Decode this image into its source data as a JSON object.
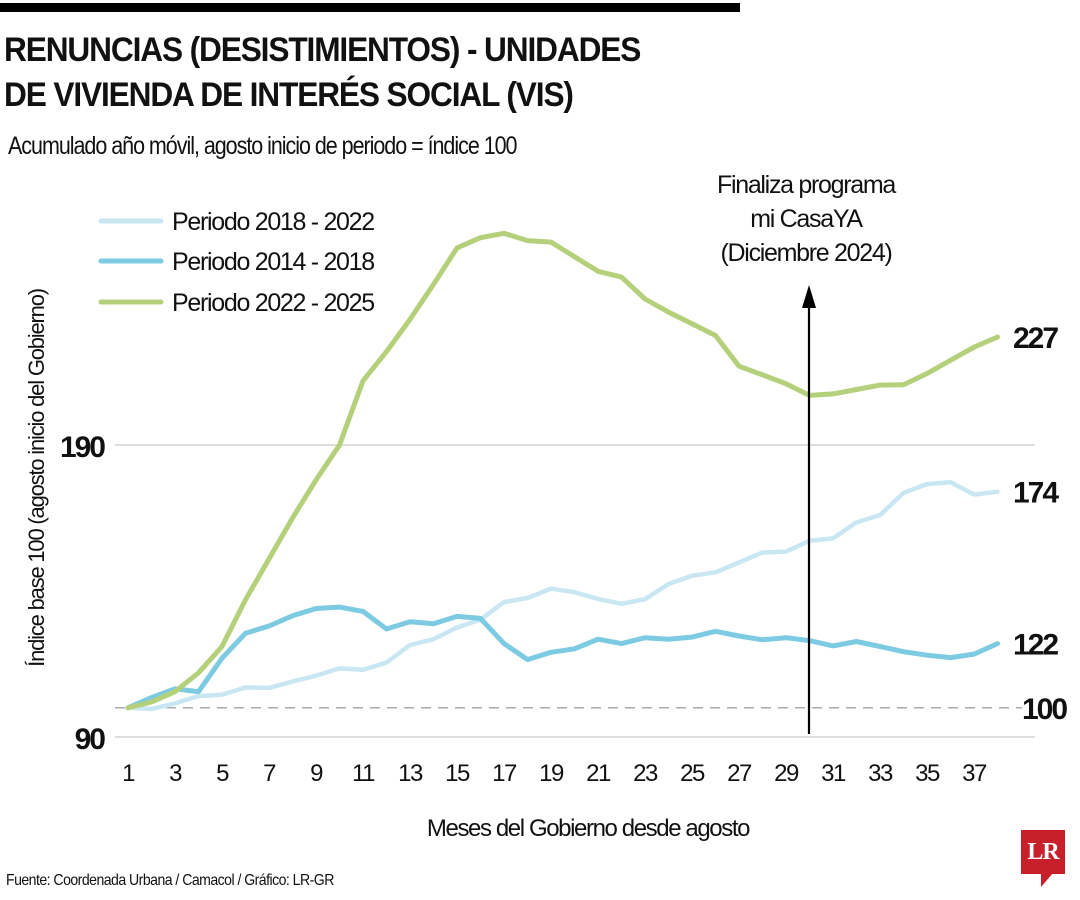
{
  "header": {
    "title_line1": "RENUNCIAS (DESISTIMIENTOS) - UNIDADES",
    "title_line2": "DE VIVIENDA DE INTERÉS SOCIAL (VIS)",
    "subtitle": "Acumulado año móvil, agosto inicio de periodo = índice 100"
  },
  "footer": {
    "source": "Fuente: Coordenada Urbana / Camacol / Gráfico: LR-GR",
    "logo_text": "LR"
  },
  "colors": {
    "green": "#b5d07a",
    "mid_blue": "#7ccbe2",
    "light_blue": "#c9e7f2",
    "logo_red": "#c8202a"
  },
  "chart_data": {
    "type": "line",
    "title": "RENUNCIAS (DESISTIMIENTOS) - UNIDADES DE VIVIENDA DE INTERÉS SOCIAL (VIS)",
    "subtitle": "Acumulado año móvil, agosto inicio de periodo = índice 100",
    "xlabel": "Meses del Gobierno desde agosto",
    "ylabel": "Índice base 100 (agosto inicio del Gobierno)",
    "xlim": [
      1,
      38
    ],
    "ylim": [
      90,
      270
    ],
    "x_ticks": [
      1,
      3,
      5,
      7,
      9,
      11,
      13,
      15,
      17,
      19,
      21,
      23,
      25,
      27,
      29,
      31,
      33,
      35,
      37
    ],
    "y_ticks": [
      90,
      190
    ],
    "grid": "horizontal at y ticks",
    "baseline": {
      "value": 100,
      "style": "dashed",
      "label": "100"
    },
    "legend_position": "top-left",
    "x": [
      1,
      2,
      3,
      4,
      5,
      6,
      7,
      8,
      9,
      10,
      11,
      12,
      13,
      14,
      15,
      16,
      17,
      18,
      19,
      20,
      21,
      22,
      23,
      24,
      25,
      26,
      27,
      28,
      29,
      30,
      31,
      32,
      33,
      34,
      35,
      36,
      37,
      38
    ],
    "series": [
      {
        "name": "Periodo 2018 - 2022",
        "color_key": "light_blue",
        "end_label": "174",
        "values": [
          100,
          99.6,
          101.5,
          104,
          104.5,
          107,
          106.8,
          109,
          111,
          113.5,
          113,
          115.5,
          121.5,
          123.5,
          127.5,
          130.2,
          136.2,
          137.6,
          140.8,
          139.6,
          137.3,
          135.6,
          137.2,
          142.4,
          145.2,
          146.4,
          149.8,
          153.2,
          153.5,
          157.2,
          158,
          163.5,
          166,
          173.6,
          176.6,
          177.3,
          173,
          174
        ]
      },
      {
        "name": "Periodo 2014 - 2018",
        "color_key": "mid_blue",
        "end_label": "122",
        "values": [
          100,
          103.5,
          106.5,
          105.5,
          117,
          125.5,
          128,
          131.5,
          134,
          134.5,
          133,
          127,
          129.5,
          128.8,
          131.3,
          130.6,
          122,
          116.5,
          119,
          120.2,
          123.5,
          122,
          124,
          123.5,
          124.2,
          126.2,
          124.6,
          123.3,
          124,
          123,
          121.2,
          122.7,
          121,
          119.2,
          118,
          117.2,
          118.4,
          122
        ]
      },
      {
        "name": "Periodo 2022 - 2025",
        "color_key": "green",
        "end_label": "227",
        "values": [
          100,
          102,
          105.5,
          112,
          121,
          137,
          151,
          165,
          178,
          190,
          212,
          222,
          233,
          245,
          257.5,
          261,
          262.5,
          260,
          259.5,
          254.5,
          249.5,
          247.5,
          240,
          235.5,
          231.5,
          227.5,
          217,
          214,
          211,
          207,
          207.5,
          209,
          210.5,
          210.6,
          214.5,
          219,
          223.5,
          227
        ]
      }
    ],
    "annotations": [
      {
        "text_lines": [
          "Finaliza programa",
          "mi CasaYA",
          "(Diciembre 2024)"
        ],
        "x": 30,
        "type": "vertical-arrow-up"
      }
    ]
  }
}
